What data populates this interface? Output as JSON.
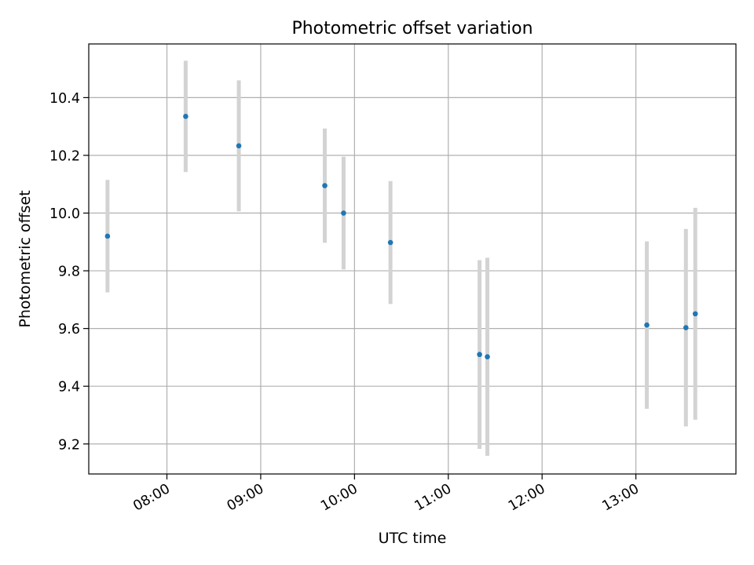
{
  "chart_data": {
    "type": "scatter",
    "title": "Photometric offset variation",
    "xlabel": "UTC time",
    "ylabel": "Photometric offset",
    "xlim": [
      "07:10",
      "14:04"
    ],
    "ylim": [
      9.096,
      10.586
    ],
    "x_ticks": [
      "08:00",
      "09:00",
      "10:00",
      "11:00",
      "12:00",
      "13:00"
    ],
    "y_ticks": [
      "9.2",
      "9.4",
      "9.6",
      "9.8",
      "10.0",
      "10.2",
      "10.4"
    ],
    "grid": true,
    "legend": "none",
    "colors": {
      "point": "#1f77b4",
      "errorbar": "#d3d3d3",
      "grid": "#b0b0b0"
    },
    "series": [
      {
        "points": [
          {
            "x": "07:22",
            "y": 9.92,
            "err": 0.195
          },
          {
            "x": "08:12",
            "y": 10.335,
            "err": 0.193
          },
          {
            "x": "08:46",
            "y": 10.233,
            "err": 0.227
          },
          {
            "x": "09:41",
            "y": 10.095,
            "err": 0.198
          },
          {
            "x": "09:53",
            "y": 10.0,
            "err": 0.195
          },
          {
            "x": "10:23",
            "y": 9.898,
            "err": 0.213
          },
          {
            "x": "11:20",
            "y": 9.51,
            "err": 0.327
          },
          {
            "x": "11:25",
            "y": 9.502,
            "err": 0.343
          },
          {
            "x": "13:07",
            "y": 9.612,
            "err": 0.29
          },
          {
            "x": "13:32",
            "y": 9.603,
            "err": 0.342
          },
          {
            "x": "13:38",
            "y": 9.651,
            "err": 0.367
          }
        ]
      }
    ]
  }
}
